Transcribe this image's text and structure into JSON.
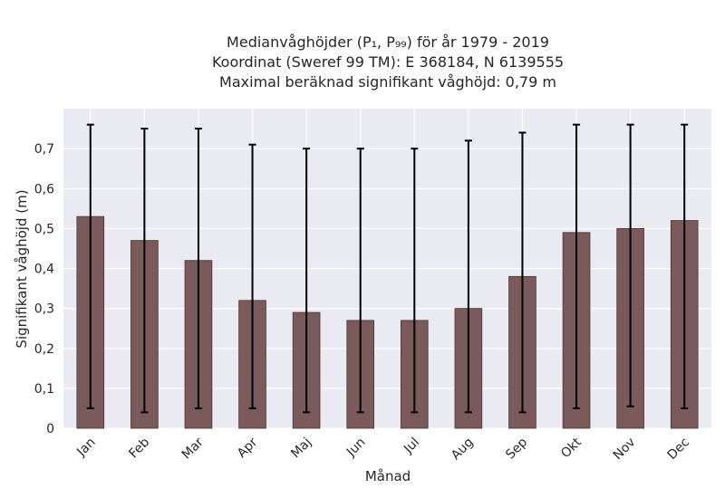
{
  "chart_data": {
    "type": "bar",
    "title_lines": [
      "Medianvåghöjder (P₁, P₉₉) för år 1979 - 2019",
      "Koordinat (Sweref 99 TM): E 368184, N 6139555",
      "Maximal beräknad signifikant våghöjd: 0,79 m"
    ],
    "xlabel": "Månad",
    "ylabel": "Signifikant våghöjd (m)",
    "categories": [
      "Jan",
      "Feb",
      "Mar",
      "Apr",
      "Maj",
      "Jun",
      "Jul",
      "Aug",
      "Sep",
      "Okt",
      "Nov",
      "Dec"
    ],
    "values": [
      0.53,
      0.47,
      0.42,
      0.32,
      0.29,
      0.27,
      0.27,
      0.3,
      0.38,
      0.49,
      0.5,
      0.52
    ],
    "err_low": [
      0.05,
      0.04,
      0.05,
      0.05,
      0.04,
      0.04,
      0.04,
      0.04,
      0.04,
      0.05,
      0.055,
      0.05
    ],
    "err_high": [
      0.76,
      0.75,
      0.75,
      0.71,
      0.7,
      0.7,
      0.7,
      0.72,
      0.74,
      0.76,
      0.76,
      0.76
    ],
    "ylim": [
      0,
      0.8
    ],
    "yticks": [
      "0",
      "0,1",
      "0,2",
      "0,3",
      "0,4",
      "0,5",
      "0,6",
      "0,7"
    ],
    "ytick_values": [
      0,
      0.1,
      0.2,
      0.3,
      0.4,
      0.5,
      0.6,
      0.7
    ],
    "grid": true,
    "bar_color": "#7a5a5a",
    "bar_edge_color": "#4a3434",
    "error_bar_color": "#000000",
    "plot_background": "#eaeaf2"
  }
}
